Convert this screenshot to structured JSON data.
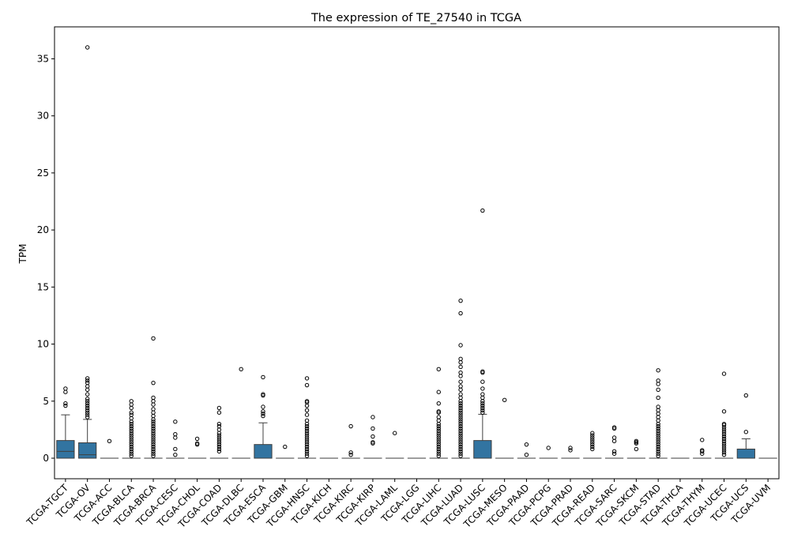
{
  "chart_data": {
    "type": "box",
    "title": "The expression of TE_27540 in TCGA",
    "xlabel": "",
    "ylabel": "TPM",
    "ylim": [
      -1.8,
      37.8
    ],
    "yticks": [
      0,
      5,
      10,
      15,
      20,
      25,
      30,
      35
    ],
    "grid": false,
    "legend": "none",
    "box_color": "#3274a1",
    "categories": [
      "TCGA-TGCT",
      "TCGA-OV",
      "TCGA-ACC",
      "TCGA-BLCA",
      "TCGA-BRCA",
      "TCGA-CESC",
      "TCGA-CHOL",
      "TCGA-COAD",
      "TCGA-DLBC",
      "TCGA-ESCA",
      "TCGA-GBM",
      "TCGA-HNSC",
      "TCGA-KICH",
      "TCGA-KIRC",
      "TCGA-KIRP",
      "TCGA-LAML",
      "TCGA-LGG",
      "TCGA-LIHC",
      "TCGA-LUAD",
      "TCGA-LUSC",
      "TCGA-MESO",
      "TCGA-PAAD",
      "TCGA-PCPG",
      "TCGA-PRAD",
      "TCGA-READ",
      "TCGA-SARC",
      "TCGA-SKCM",
      "TCGA-STAD",
      "TCGA-THCA",
      "TCGA-THYM",
      "TCGA-UCEC",
      "TCGA-UCS",
      "TCGA-UVM"
    ],
    "boxes": [
      {
        "q1": 0,
        "median": 0.6,
        "q3": 1.55,
        "whisker_low": 0,
        "whisker_high": 3.8,
        "outliers": [
          4.6,
          4.8,
          5.8,
          6.1
        ]
      },
      {
        "q1": 0,
        "median": 0.3,
        "q3": 1.35,
        "whisker_low": 0,
        "whisker_high": 3.4,
        "outliers": [
          3.6,
          3.8,
          4.0,
          4.2,
          4.4,
          4.6,
          4.8,
          5.0,
          5.2,
          5.6,
          6.0,
          6.3,
          6.6,
          6.8,
          7.0,
          36.0
        ]
      },
      {
        "q1": 0,
        "median": 0,
        "q3": 0,
        "whisker_low": 0,
        "whisker_high": 0,
        "outliers": [
          1.5
        ]
      },
      {
        "q1": 0,
        "median": 0,
        "q3": 0,
        "whisker_low": 0,
        "whisker_high": 0,
        "outliers": [
          0.2,
          0.4,
          0.6,
          0.8,
          1.0,
          1.2,
          1.4,
          1.6,
          1.8,
          2.0,
          2.2,
          2.4,
          2.6,
          2.8,
          3.0,
          3.2,
          3.5,
          3.8,
          4.0,
          4.4,
          4.7,
          5.0
        ]
      },
      {
        "q1": 0,
        "median": 0,
        "q3": 0,
        "whisker_low": 0,
        "whisker_high": 0,
        "outliers": [
          0.2,
          0.4,
          0.6,
          0.8,
          1.0,
          1.2,
          1.4,
          1.6,
          1.8,
          2.0,
          2.2,
          2.4,
          2.6,
          2.8,
          3.0,
          3.2,
          3.4,
          3.7,
          4.0,
          4.3,
          4.7,
          5.0,
          5.3,
          6.6,
          10.5
        ]
      },
      {
        "q1": 0,
        "median": 0,
        "q3": 0,
        "whisker_low": 0,
        "whisker_high": 0,
        "outliers": [
          0.3,
          0.8,
          1.8,
          2.1,
          3.2
        ]
      },
      {
        "q1": 0,
        "median": 0,
        "q3": 0,
        "whisker_low": 0,
        "whisker_high": 0,
        "outliers": [
          1.2,
          1.3,
          1.7
        ]
      },
      {
        "q1": 0,
        "median": 0,
        "q3": 0,
        "whisker_low": 0,
        "whisker_high": 0,
        "outliers": [
          0.6,
          0.8,
          1.0,
          1.2,
          1.4,
          1.6,
          1.8,
          2.0,
          2.2,
          2.5,
          2.8,
          3.0,
          4.0,
          4.4
        ]
      },
      {
        "q1": 0,
        "median": 0,
        "q3": 0,
        "whisker_low": 0,
        "whisker_high": 0,
        "outliers": [
          7.8
        ]
      },
      {
        "q1": 0,
        "median": 0,
        "q3": 1.2,
        "whisker_low": 0,
        "whisker_high": 3.1,
        "outliers": [
          3.7,
          3.9,
          4.1,
          4.5,
          5.5,
          5.6,
          7.1
        ]
      },
      {
        "q1": 0,
        "median": 0,
        "q3": 0,
        "whisker_low": 0,
        "whisker_high": 0,
        "outliers": [
          1.0
        ]
      },
      {
        "q1": 0,
        "median": 0,
        "q3": 0,
        "whisker_low": 0,
        "whisker_high": 0,
        "outliers": [
          0.2,
          0.4,
          0.6,
          0.8,
          1.0,
          1.2,
          1.4,
          1.6,
          1.8,
          2.0,
          2.2,
          2.4,
          2.6,
          2.8,
          3.0,
          3.3,
          3.8,
          4.2,
          4.6,
          4.9,
          5.0,
          6.4,
          7.0
        ]
      },
      {
        "q1": 0,
        "median": 0,
        "q3": 0,
        "whisker_low": 0,
        "whisker_high": 0,
        "outliers": []
      },
      {
        "q1": 0,
        "median": 0,
        "q3": 0,
        "whisker_low": 0,
        "whisker_high": 0,
        "outliers": [
          0.3,
          0.5,
          2.8
        ]
      },
      {
        "q1": 0,
        "median": 0,
        "q3": 0,
        "whisker_low": 0,
        "whisker_high": 0,
        "outliers": [
          1.3,
          1.4,
          1.9,
          2.6,
          3.6
        ]
      },
      {
        "q1": 0,
        "median": 0,
        "q3": 0,
        "whisker_low": 0,
        "whisker_high": 0,
        "outliers": [
          2.2
        ]
      },
      {
        "q1": 0,
        "median": 0,
        "q3": 0,
        "whisker_low": 0,
        "whisker_high": 0,
        "outliers": []
      },
      {
        "q1": 0,
        "median": 0,
        "q3": 0,
        "whisker_low": 0,
        "whisker_high": 0,
        "outliers": [
          0.2,
          0.4,
          0.6,
          0.8,
          1.0,
          1.2,
          1.4,
          1.6,
          1.8,
          2.0,
          2.2,
          2.4,
          2.6,
          2.8,
          3.0,
          3.3,
          3.6,
          4.0,
          4.1,
          4.8,
          5.8,
          7.8
        ]
      },
      {
        "q1": 0,
        "median": 0,
        "q3": 0,
        "whisker_low": 0,
        "whisker_high": 0,
        "outliers": [
          0.2,
          0.4,
          0.6,
          0.8,
          1.0,
          1.2,
          1.4,
          1.6,
          1.8,
          2.0,
          2.2,
          2.4,
          2.6,
          2.8,
          3.0,
          3.2,
          3.4,
          3.6,
          3.8,
          4.0,
          4.2,
          4.4,
          4.6,
          4.8,
          5.0,
          5.3,
          5.6,
          6.0,
          6.3,
          6.7,
          7.2,
          7.5,
          8.0,
          8.4,
          8.7,
          9.9,
          12.7,
          13.8
        ]
      },
      {
        "q1": 0,
        "median": 0,
        "q3": 1.55,
        "whisker_low": 0,
        "whisker_high": 3.85,
        "outliers": [
          4.0,
          4.2,
          4.4,
          4.6,
          4.8,
          5.0,
          5.3,
          5.6,
          6.1,
          6.7,
          7.5,
          7.6,
          21.7
        ]
      },
      {
        "q1": 0,
        "median": 0,
        "q3": 0,
        "whisker_low": 0,
        "whisker_high": 0,
        "outliers": [
          5.1
        ]
      },
      {
        "q1": 0,
        "median": 0,
        "q3": 0,
        "whisker_low": 0,
        "whisker_high": 0,
        "outliers": [
          0.3,
          1.2
        ]
      },
      {
        "q1": 0,
        "median": 0,
        "q3": 0,
        "whisker_low": 0,
        "whisker_high": 0,
        "outliers": [
          0.9
        ]
      },
      {
        "q1": 0,
        "median": 0,
        "q3": 0,
        "whisker_low": 0,
        "whisker_high": 0,
        "outliers": [
          0.7,
          0.9
        ]
      },
      {
        "q1": 0,
        "median": 0,
        "q3": 0,
        "whisker_low": 0,
        "whisker_high": 0,
        "outliers": [
          0.8,
          1.0,
          1.2,
          1.4,
          1.6,
          1.8,
          2.0,
          2.2
        ]
      },
      {
        "q1": 0,
        "median": 0,
        "q3": 0,
        "whisker_low": 0,
        "whisker_high": 0,
        "outliers": [
          0.4,
          0.6,
          1.5,
          1.8,
          2.6,
          2.7
        ]
      },
      {
        "q1": 0,
        "median": 0,
        "q3": 0,
        "whisker_low": 0,
        "whisker_high": 0,
        "outliers": [
          0.8,
          1.3,
          1.4,
          1.5
        ]
      },
      {
        "q1": 0,
        "median": 0,
        "q3": 0,
        "whisker_low": 0,
        "whisker_high": 0,
        "outliers": [
          0.2,
          0.4,
          0.6,
          0.8,
          1.0,
          1.2,
          1.4,
          1.6,
          1.8,
          2.0,
          2.2,
          2.4,
          2.6,
          2.8,
          3.0,
          3.3,
          3.6,
          3.9,
          4.2,
          4.5,
          5.3,
          6.0,
          6.5,
          6.8,
          7.7
        ]
      },
      {
        "q1": 0,
        "median": 0,
        "q3": 0,
        "whisker_low": 0,
        "whisker_high": 0,
        "outliers": []
      },
      {
        "q1": 0,
        "median": 0,
        "q3": 0,
        "whisker_low": 0,
        "whisker_high": 0,
        "outliers": [
          0.4,
          0.6,
          0.7,
          1.6
        ]
      },
      {
        "q1": 0,
        "median": 0,
        "q3": 0,
        "whisker_low": 0,
        "whisker_high": 0,
        "outliers": [
          0.3,
          0.5,
          0.7,
          0.9,
          1.1,
          1.3,
          1.5,
          1.7,
          1.9,
          2.1,
          2.3,
          2.5,
          2.7,
          2.9,
          3.0,
          4.1,
          7.4
        ]
      },
      {
        "q1": 0,
        "median": 0,
        "q3": 0.8,
        "whisker_low": 0,
        "whisker_high": 1.7,
        "outliers": [
          2.3,
          5.5
        ]
      },
      {
        "q1": 0,
        "median": 0,
        "q3": 0,
        "whisker_low": 0,
        "whisker_high": 0,
        "outliers": []
      }
    ]
  }
}
